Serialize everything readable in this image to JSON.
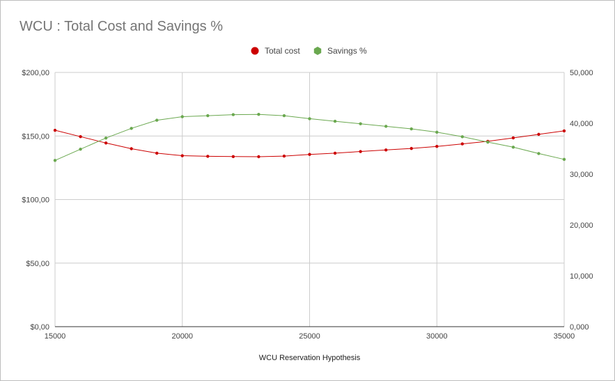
{
  "chart_data": {
    "type": "line",
    "title": "WCU : Total Cost and Savings %",
    "xlabel": "WCU Reservation Hypothesis",
    "ylabel": "",
    "y2label": "",
    "x": [
      15000,
      16000,
      17000,
      18000,
      19000,
      20000,
      21000,
      22000,
      23000,
      24000,
      25000,
      26000,
      27000,
      28000,
      29000,
      30000,
      31000,
      32000,
      33000,
      34000,
      35000
    ],
    "xlim": [
      15000,
      35000
    ],
    "xticks": [
      15000,
      20000,
      25000,
      30000,
      35000
    ],
    "xtick_labels": [
      "15000",
      "20000",
      "25000",
      "30000",
      "35000"
    ],
    "ylim": [
      0,
      200
    ],
    "yticks": [
      0,
      50,
      100,
      150,
      200
    ],
    "ytick_labels": [
      "$0,00",
      "$50,00",
      "$100,00",
      "$150,00",
      "$200,00"
    ],
    "y2lim": [
      0,
      50000
    ],
    "y2ticks": [
      0,
      10000,
      20000,
      30000,
      40000,
      50000
    ],
    "y2tick_labels": [
      "0,000",
      "10,000",
      "20,000",
      "30,000",
      "40,000",
      "50,000"
    ],
    "grid": true,
    "legend_position": "top",
    "series": [
      {
        "name": "Total cost",
        "axis": "left",
        "color": "#cc0000",
        "marker": "circle",
        "values": [
          154.5,
          149.5,
          144.5,
          140,
          136.5,
          134.5,
          134,
          133.8,
          133.7,
          134.2,
          135.5,
          136.5,
          137.8,
          139,
          140.2,
          141.8,
          143.8,
          145.8,
          148.5,
          151.3,
          154
        ]
      },
      {
        "name": "Savings %",
        "axis": "right",
        "color": "#6aa84f",
        "marker": "hexagon",
        "values": [
          32700,
          34900,
          37100,
          39000,
          40600,
          41300,
          41500,
          41700,
          41750,
          41500,
          40900,
          40400,
          39900,
          39400,
          38900,
          38250,
          37350,
          36300,
          35300,
          34050,
          32900
        ]
      }
    ]
  }
}
